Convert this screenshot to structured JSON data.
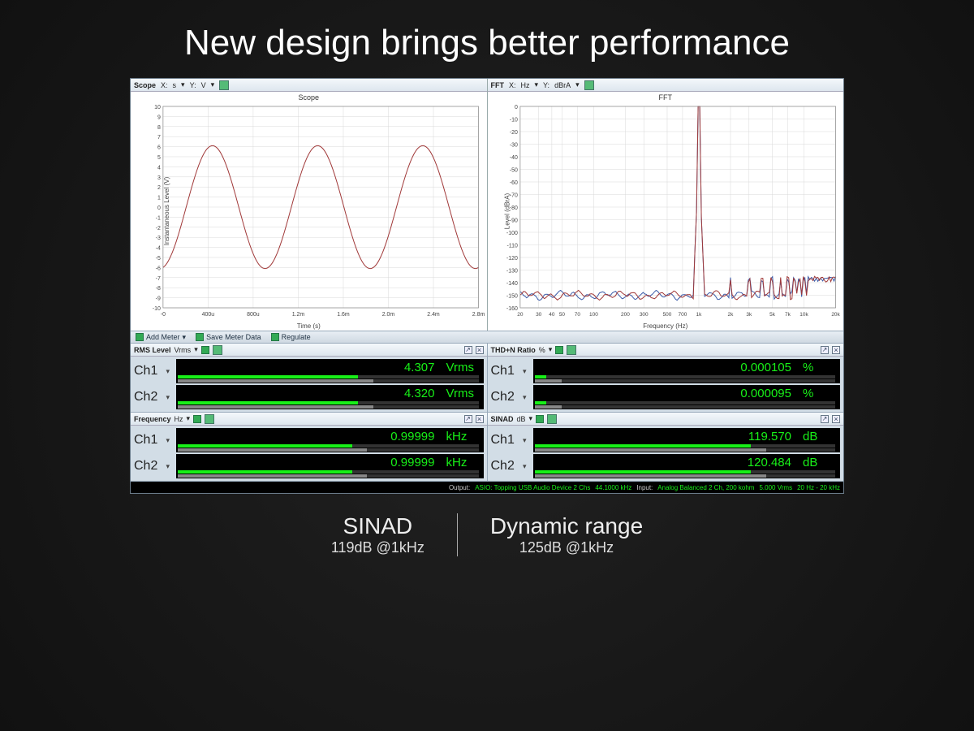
{
  "slide": {
    "title": "New design brings better performance"
  },
  "scope_chart": {
    "type": "line",
    "toolbar": {
      "name": "Scope",
      "x_label": "X:",
      "x_unit": "s",
      "y_label": "Y:",
      "y_unit": "V"
    },
    "title": "Scope",
    "x_axis_label": "Time (s)",
    "y_axis_label": "Instantaneous Level (V)",
    "xlim": [
      0,
      0.003
    ],
    "ylim": [
      -10,
      10
    ],
    "xticks": [
      "-0",
      "400u",
      "800u",
      "1.2m",
      "1.6m",
      "2.0m",
      "2.4m",
      "2.8m"
    ],
    "yticks": [
      -10,
      -9,
      -8,
      -7,
      -6,
      -5,
      -4,
      -3,
      -2,
      -1,
      0,
      1,
      2,
      3,
      4,
      5,
      6,
      7,
      8,
      9,
      10
    ],
    "amplitude": 6.1,
    "freq_hz": 1000,
    "phase_rad": 4.9,
    "line_color": "#a03838",
    "line_width": 1,
    "grid_color": "#d8d8d8",
    "background_color": "#ffffff"
  },
  "fft_chart": {
    "type": "line",
    "toolbar": {
      "name": "FFT",
      "x_label": "X:",
      "x_unit": "Hz",
      "y_label": "Y:",
      "y_unit": "dBrA"
    },
    "title": "FFT",
    "x_axis_label": "Frequency (Hz)",
    "y_axis_label": "Level (dBrA)",
    "x_scale": "log",
    "xlim": [
      20,
      20000
    ],
    "ylim": [
      -160,
      0
    ],
    "xticks": [
      "20",
      "30",
      "40",
      "50",
      "70",
      "100",
      "200",
      "300",
      "500",
      "700",
      "1k",
      "2k",
      "3k",
      "5k",
      "7k",
      "10k",
      "20k"
    ],
    "yticks": [
      0,
      -10,
      -20,
      -30,
      -40,
      -50,
      -60,
      -70,
      -80,
      -90,
      -100,
      -110,
      -120,
      -130,
      -140,
      -150,
      -160
    ],
    "noise_floor_db": -150,
    "fundamental_hz": 1000,
    "fundamental_db": 0,
    "harmonic_db": -140,
    "series1_color": "#a03838",
    "series2_color": "#3a5aa8",
    "line_width": 1,
    "grid_color": "#d8d8d8",
    "background_color": "#ffffff"
  },
  "meter_toolbar": {
    "add_meter": "Add Meter",
    "save_data": "Save Meter Data",
    "regulate": "Regulate"
  },
  "meters": {
    "rms": {
      "title": "RMS Level",
      "unit_sel": "Vrms",
      "ch1": {
        "label": "Ch1",
        "value": "4.307",
        "unit": "Vrms",
        "bar_pct": 60
      },
      "ch2": {
        "label": "Ch2",
        "value": "4.320",
        "unit": "Vrms",
        "bar_pct": 60
      }
    },
    "thdn": {
      "title": "THD+N Ratio",
      "unit_sel": "%",
      "ch1": {
        "label": "Ch1",
        "value": "0.000105",
        "unit": "%",
        "bar_pct": 4
      },
      "ch2": {
        "label": "Ch2",
        "value": "0.000095",
        "unit": "%",
        "bar_pct": 4
      }
    },
    "freq": {
      "title": "Frequency",
      "unit_sel": "Hz",
      "ch1": {
        "label": "Ch1",
        "value": "0.99999",
        "unit": "kHz",
        "bar_pct": 58
      },
      "ch2": {
        "label": "Ch2",
        "value": "0.99999",
        "unit": "kHz",
        "bar_pct": 58
      }
    },
    "sinad": {
      "title": "SINAD",
      "unit_sel": "dB",
      "ch1": {
        "label": "Ch1",
        "value": "119.570",
        "unit": "dB",
        "bar_pct": 72
      },
      "ch2": {
        "label": "Ch2",
        "value": "120.484",
        "unit": "dB",
        "bar_pct": 72
      }
    }
  },
  "status": {
    "output_label": "Output:",
    "output_device": "ASIO: Topping USB Audio Device 2 Chs",
    "output_rate": "44.1000 kHz",
    "input_label": "Input:",
    "input_device": "Analog Balanced 2 Ch, 200 kohm",
    "input_level": "5.000 Vrms",
    "input_bw": "20 Hz - 20 kHz"
  },
  "footer": {
    "left_title": "SINAD",
    "left_sub": "119dB @1kHz",
    "right_title": "Dynamic range",
    "right_sub": "125dB @1kHz"
  },
  "colors": {
    "readout_green": "#18f018",
    "panel_bg": "#d6e0e8",
    "black": "#000000"
  }
}
